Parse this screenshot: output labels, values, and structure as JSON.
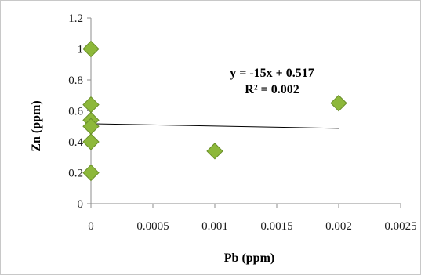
{
  "chart_data": {
    "type": "scatter",
    "xlabel": "Pb (ppm)",
    "ylabel": "Zn (ppm)",
    "xlim": [
      0,
      0.0025
    ],
    "ylim": [
      0,
      1.2
    ],
    "x_ticks": [
      "0",
      "0.0005",
      "0.001",
      "0.0015",
      "0.002",
      "0.0025"
    ],
    "y_ticks": [
      "0",
      "0.2",
      "0.4",
      "0.6",
      "0.8",
      "1",
      "1.2"
    ],
    "grid": false,
    "legend": false,
    "points": [
      {
        "x": 0,
        "y": 1.0
      },
      {
        "x": 0,
        "y": 0.64
      },
      {
        "x": 0,
        "y": 0.54
      },
      {
        "x": 0,
        "y": 0.5
      },
      {
        "x": 0,
        "y": 0.4
      },
      {
        "x": 0,
        "y": 0.2
      },
      {
        "x": 0.001,
        "y": 0.34
      },
      {
        "x": 0.002,
        "y": 0.65
      }
    ],
    "trendline": {
      "slope": -15,
      "intercept": 0.517,
      "x_range": [
        0,
        0.002
      ]
    },
    "annotation": {
      "equation": "y = -15x + 0.517",
      "r_squared": "R² = 0.002"
    },
    "colors": {
      "marker_fill": "#8DB83A",
      "marker_stroke": "#6A8F2A",
      "axis": "#8c8c8c",
      "trendline": "#000000"
    }
  }
}
